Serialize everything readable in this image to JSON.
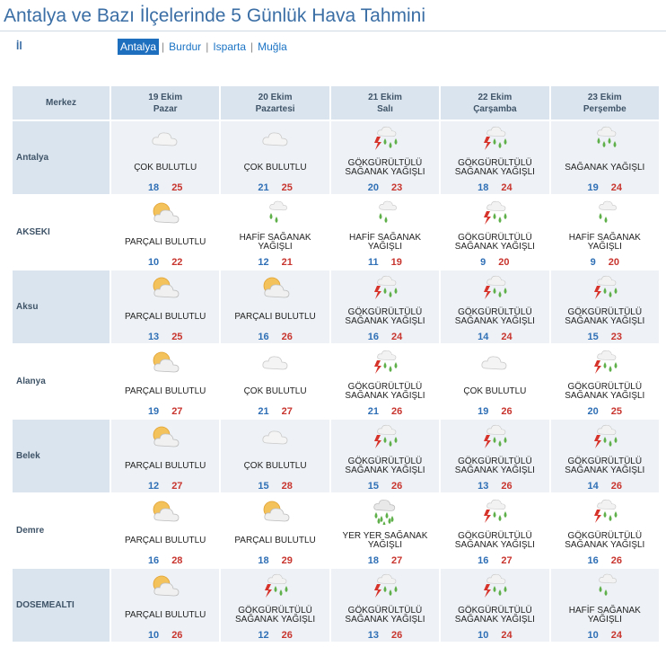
{
  "page": {
    "title": "Antalya ve Bazı İlçelerinde 5 Günlük Hava Tahmini",
    "il_label": "İl",
    "provinces": [
      {
        "label": "Antalya",
        "active": true
      },
      {
        "label": "Burdur",
        "active": false
      },
      {
        "label": "Isparta",
        "active": false
      },
      {
        "label": "Muğla",
        "active": false
      }
    ]
  },
  "table": {
    "merkez_label": "Merkez",
    "days": [
      {
        "date": "19 Ekim",
        "weekday": "Pazar"
      },
      {
        "date": "20 Ekim",
        "weekday": "Pazartesi"
      },
      {
        "date": "21 Ekim",
        "weekday": "Salı"
      },
      {
        "date": "22 Ekim",
        "weekday": "Çarşamba"
      },
      {
        "date": "23 Ekim",
        "weekday": "Perşembe"
      }
    ],
    "rows": [
      {
        "name": "Antalya",
        "shaded": true,
        "cells": [
          {
            "icon": "cloudy-icon",
            "cond": "ÇOK BULUTLU",
            "min": "18",
            "max": "25"
          },
          {
            "icon": "cloudy-icon",
            "cond": "ÇOK BULUTLU",
            "min": "21",
            "max": "25"
          },
          {
            "icon": "thunderstorm-shower-icon",
            "cond": "GÖKGÜRÜLTÜLÜ SAĞANAK YAĞIŞLI",
            "min": "20",
            "max": "23"
          },
          {
            "icon": "thunderstorm-shower-icon",
            "cond": "GÖKGÜRÜLTÜLÜ SAĞANAK YAĞIŞLI",
            "min": "18",
            "max": "24"
          },
          {
            "icon": "shower-icon",
            "cond": "SAĞANAK YAĞIŞLI",
            "min": "19",
            "max": "24"
          }
        ]
      },
      {
        "name": "AKSEKI",
        "shaded": false,
        "cells": [
          {
            "icon": "partly-cloudy-icon",
            "cond": "PARÇALI BULUTLU",
            "min": "10",
            "max": "22"
          },
          {
            "icon": "light-shower-icon",
            "cond": "HAFİF SAĞANAK YAĞIŞLI",
            "min": "12",
            "max": "21"
          },
          {
            "icon": "light-shower-icon",
            "cond": "HAFİF SAĞANAK YAĞIŞLI",
            "min": "11",
            "max": "19"
          },
          {
            "icon": "thunderstorm-shower-icon",
            "cond": "GÖKGÜRÜLTÜLÜ SAĞANAK YAĞIŞLI",
            "min": "9",
            "max": "20"
          },
          {
            "icon": "light-shower-icon",
            "cond": "HAFİF SAĞANAK YAĞIŞLI",
            "min": "9",
            "max": "20"
          }
        ]
      },
      {
        "name": "Aksu",
        "shaded": true,
        "cells": [
          {
            "icon": "partly-cloudy-icon",
            "cond": "PARÇALI BULUTLU",
            "min": "13",
            "max": "25"
          },
          {
            "icon": "partly-cloudy-icon",
            "cond": "PARÇALI BULUTLU",
            "min": "16",
            "max": "26"
          },
          {
            "icon": "thunderstorm-shower-icon",
            "cond": "GÖKGÜRÜLTÜLÜ SAĞANAK YAĞIŞLI",
            "min": "16",
            "max": "24"
          },
          {
            "icon": "thunderstorm-shower-icon",
            "cond": "GÖKGÜRÜLTÜLÜ SAĞANAK YAĞIŞLI",
            "min": "14",
            "max": "24"
          },
          {
            "icon": "thunderstorm-shower-icon",
            "cond": "GÖKGÜRÜLTÜLÜ SAĞANAK YAĞIŞLI",
            "min": "15",
            "max": "23"
          }
        ]
      },
      {
        "name": "Alanya",
        "shaded": false,
        "cells": [
          {
            "icon": "partly-cloudy-icon",
            "cond": "PARÇALI BULUTLU",
            "min": "19",
            "max": "27"
          },
          {
            "icon": "cloudy-icon",
            "cond": "ÇOK BULUTLU",
            "min": "21",
            "max": "27"
          },
          {
            "icon": "thunderstorm-shower-icon",
            "cond": "GÖKGÜRÜLTÜLÜ SAĞANAK YAĞIŞLI",
            "min": "21",
            "max": "26"
          },
          {
            "icon": "cloudy-icon",
            "cond": "ÇOK BULUTLU",
            "min": "19",
            "max": "26"
          },
          {
            "icon": "thunderstorm-shower-icon",
            "cond": "GÖKGÜRÜLTÜLÜ SAĞANAK YAĞIŞLI",
            "min": "20",
            "max": "25"
          }
        ]
      },
      {
        "name": "Belek",
        "shaded": true,
        "cells": [
          {
            "icon": "partly-cloudy-icon",
            "cond": "PARÇALI BULUTLU",
            "min": "12",
            "max": "27"
          },
          {
            "icon": "cloudy-icon",
            "cond": "ÇOK BULUTLU",
            "min": "15",
            "max": "28"
          },
          {
            "icon": "thunderstorm-shower-icon",
            "cond": "GÖKGÜRÜLTÜLÜ SAĞANAK YAĞIŞLI",
            "min": "15",
            "max": "26"
          },
          {
            "icon": "thunderstorm-shower-icon",
            "cond": "GÖKGÜRÜLTÜLÜ SAĞANAK YAĞIŞLI",
            "min": "13",
            "max": "26"
          },
          {
            "icon": "thunderstorm-shower-icon",
            "cond": "GÖKGÜRÜLTÜLÜ SAĞANAK YAĞIŞLI",
            "min": "14",
            "max": "26"
          }
        ]
      },
      {
        "name": "Demre",
        "shaded": false,
        "cells": [
          {
            "icon": "partly-cloudy-icon",
            "cond": "PARÇALI BULUTLU",
            "min": "16",
            "max": "28"
          },
          {
            "icon": "partly-cloudy-icon",
            "cond": "PARÇALI BULUTLU",
            "min": "18",
            "max": "29"
          },
          {
            "icon": "rain-icon",
            "cond": "YER YER SAĞANAK YAĞIŞLI",
            "min": "18",
            "max": "27"
          },
          {
            "icon": "thunderstorm-shower-icon",
            "cond": "GÖKGÜRÜLTÜLÜ SAĞANAK YAĞIŞLI",
            "min": "16",
            "max": "27"
          },
          {
            "icon": "thunderstorm-shower-icon",
            "cond": "GÖKGÜRÜLTÜLÜ SAĞANAK YAĞIŞLI",
            "min": "16",
            "max": "26"
          }
        ]
      },
      {
        "name": "DOSEMEALTI",
        "shaded": true,
        "cells": [
          {
            "icon": "partly-cloudy-icon",
            "cond": "PARÇALI BULUTLU",
            "min": "10",
            "max": "26"
          },
          {
            "icon": "thunderstorm-shower-icon",
            "cond": "GÖKGÜRÜLTÜLÜ SAĞANAK YAĞIŞLI",
            "min": "12",
            "max": "26"
          },
          {
            "icon": "thunderstorm-shower-icon",
            "cond": "GÖKGÜRÜLTÜLÜ SAĞANAK YAĞIŞLI",
            "min": "13",
            "max": "26"
          },
          {
            "icon": "thunderstorm-shower-icon",
            "cond": "GÖKGÜRÜLTÜLÜ SAĞANAK YAĞIŞLI",
            "min": "10",
            "max": "24"
          },
          {
            "icon": "light-shower-icon",
            "cond": "HAFİF SAĞANAK YAĞIŞLI",
            "min": "10",
            "max": "24"
          }
        ]
      }
    ]
  }
}
